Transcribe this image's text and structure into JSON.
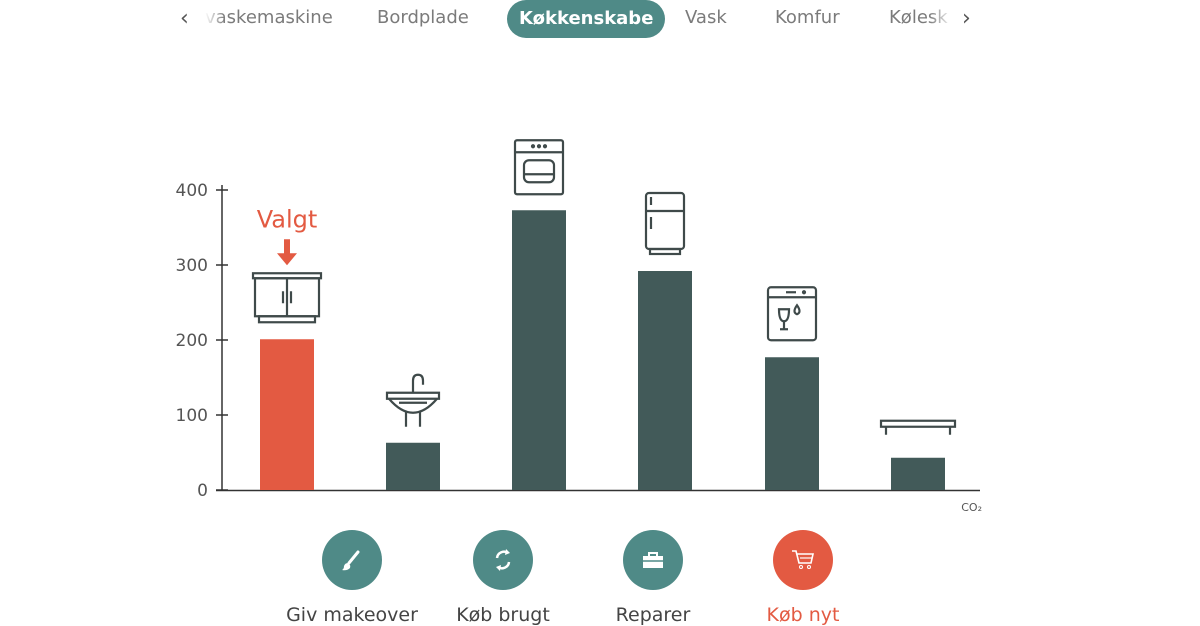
{
  "tabs": {
    "prev_icon": "chevron-left-icon",
    "next_icon": "chevron-right-icon",
    "items": [
      {
        "label": "vaskemaskine",
        "active": false
      },
      {
        "label": "Bordplade",
        "active": false
      },
      {
        "label": "Køkkenskabe",
        "active": true
      },
      {
        "label": "Vask",
        "active": false
      },
      {
        "label": "Komfur",
        "active": false
      },
      {
        "label": "Kølesk",
        "active": false
      }
    ]
  },
  "colors": {
    "accent": "#4f8a87",
    "selected": "#e35a42",
    "bar": "#425a59",
    "axis": "#333333"
  },
  "chart_data": {
    "type": "bar",
    "categories": [
      "Køkkenskabe",
      "Vask",
      "Komfur",
      "Køleskab",
      "Opvaskemaskine",
      "Bordplade"
    ],
    "icons": [
      "cabinet-icon",
      "sink-icon",
      "stove-icon",
      "fridge-icon",
      "dishwasher-icon",
      "countertop-icon"
    ],
    "values": [
      201,
      63,
      373,
      292,
      177,
      43
    ],
    "selected_index": 0,
    "selected_label": "Valgt",
    "xlabel": "CO₂",
    "ylim": [
      0,
      400
    ],
    "yticks": [
      "0",
      "100",
      "200",
      "300",
      "400"
    ],
    "grid": false
  },
  "actions": [
    {
      "label": "Giv makeover",
      "icon": "paintbrush-icon",
      "color": "#4f8a87"
    },
    {
      "label": "Køb brugt",
      "icon": "refresh-icon",
      "color": "#4f8a87"
    },
    {
      "label": "Reparer",
      "icon": "toolbox-icon",
      "color": "#4f8a87"
    },
    {
      "label": "Køb nyt",
      "icon": "cart-icon",
      "color": "#e35a42"
    }
  ]
}
